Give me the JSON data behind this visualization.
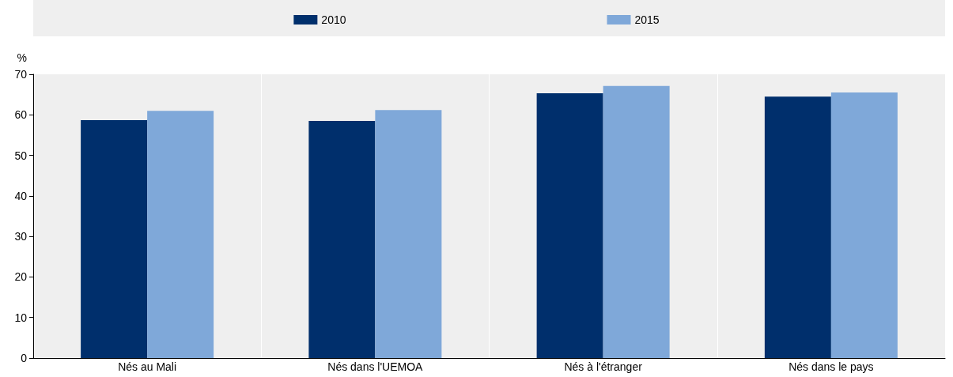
{
  "chart_data": {
    "type": "bar",
    "ylabel": "%",
    "categories": [
      "Nés au Mali",
      "Nés dans l'UEMOA",
      "Nés à l'étranger",
      "Nés dans le pays"
    ],
    "series": [
      {
        "name": "2010",
        "color": "#002f6c",
        "values": [
          58.7,
          58.5,
          65.3,
          64.5
        ]
      },
      {
        "name": "2015",
        "color": "#7fa8d9",
        "values": [
          61.0,
          61.2,
          67.1,
          65.5
        ]
      }
    ],
    "ylim": [
      0,
      70
    ],
    "yticks": [
      0,
      10,
      20,
      30,
      40,
      50,
      60,
      70
    ],
    "grid": "x",
    "legend": "top"
  }
}
